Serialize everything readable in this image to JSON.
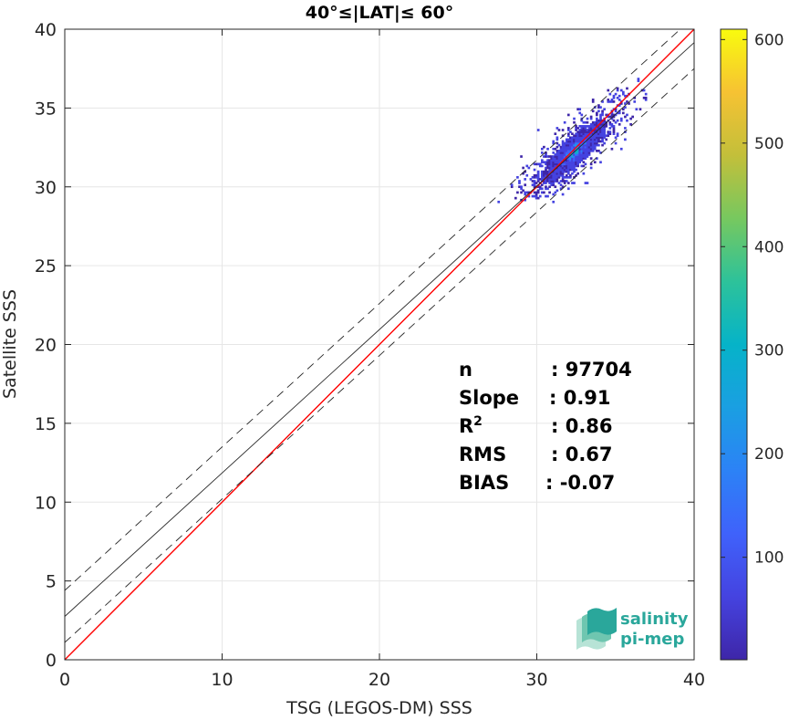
{
  "chart_data": {
    "type": "heatmap",
    "title": "40°≤|LAT|≤ 60°",
    "xlabel": "TSG (LEGOS-DM) SSS",
    "ylabel": "Satellite SSS",
    "xlim": [
      0,
      40
    ],
    "ylim": [
      0,
      40
    ],
    "xticks": [
      "0",
      "10",
      "20",
      "30",
      "40"
    ],
    "yticks": [
      "0",
      "5",
      "10",
      "15",
      "20",
      "25",
      "30",
      "35",
      "40"
    ],
    "grid": true,
    "colorbar": {
      "range": [
        1,
        610
      ],
      "ticks": [
        "100",
        "200",
        "300",
        "400",
        "500",
        "600"
      ],
      "colormap": "parula"
    },
    "density_cloud": {
      "center": [
        32.3,
        32.2
      ],
      "x_range": [
        27.5,
        37.0
      ],
      "y_range": [
        29.0,
        36.9
      ],
      "peak_count": 610
    },
    "lines": [
      {
        "name": "1:1",
        "color": "#ff0000",
        "style": "solid",
        "slope": 1.0,
        "intercept": 0.0
      },
      {
        "name": "fit",
        "color": "#262626",
        "style": "solid",
        "slope": 0.91,
        "intercept": 2.75
      },
      {
        "name": "fit+",
        "color": "#262626",
        "style": "dashed",
        "slope": 0.91,
        "intercept": 4.4
      },
      {
        "name": "fit-",
        "color": "#262626",
        "style": "dashed",
        "slope": 0.91,
        "intercept": 1.1
      }
    ],
    "stats": [
      {
        "label": "n",
        "value": ": 97704"
      },
      {
        "label": "Slope",
        "value": ": 0.91"
      },
      {
        "label": "R",
        "sup": "2",
        "value": ": 0.86"
      },
      {
        "label": "RMS",
        "value": ": 0.67"
      },
      {
        "label": "BIAS",
        "value": ": -0.07"
      }
    ]
  },
  "logo": {
    "line1": "salinity",
    "line2": "pi-mep"
  }
}
